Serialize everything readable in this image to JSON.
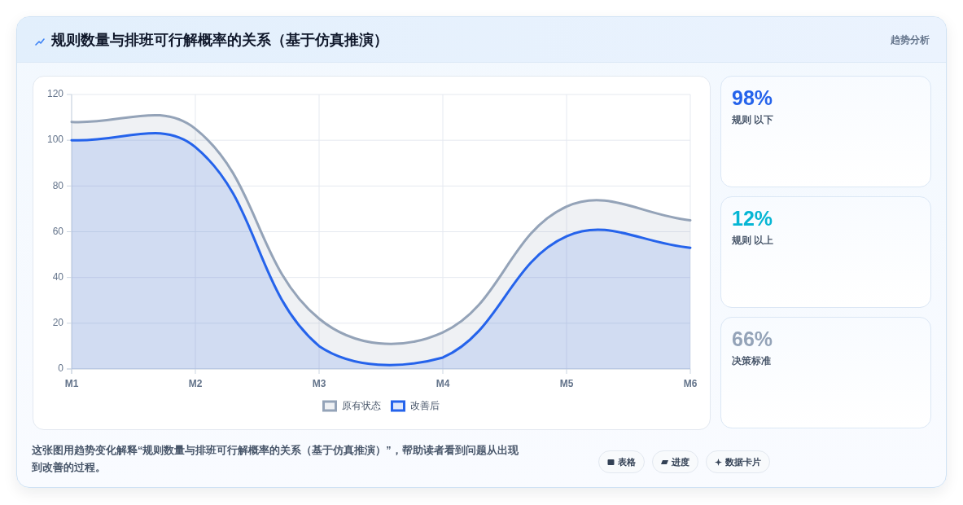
{
  "chart_data": [
    {
      "type": "area",
      "title": "规则数量与排班可行解概率的关系（基于仿真推演）",
      "categories": [
        "M1",
        "M2",
        "M3",
        "M4",
        "M5",
        "M6"
      ],
      "series": [
        {
          "name": "原有状态",
          "color": "#94a3b8",
          "values": [
            108,
            105,
            22,
            16,
            71,
            65
          ]
        },
        {
          "name": "改善后",
          "color": "#2563eb",
          "values": [
            100,
            97,
            10,
            5,
            58,
            53
          ]
        }
      ],
      "ylim": [
        0,
        120
      ],
      "yticks": [
        0,
        20,
        40,
        60,
        80,
        100,
        120
      ],
      "grid": true,
      "legend": "bottom",
      "annotations": [
        "趋势分析",
        "这张图用趋势变化解释“规则数量与排班可行解概率的关系（基于仿真推演）”，帮助读者看到问题从出现到改善的过程。",
        "表格",
        "进度",
        "数据卡片"
      ]
    },
    {
      "type": "other",
      "categories": [
        "规则 以下",
        "规则 以上",
        "决策标准"
      ],
      "value_labels": [
        "98%",
        "12%",
        "66%"
      ]
    }
  ]
}
